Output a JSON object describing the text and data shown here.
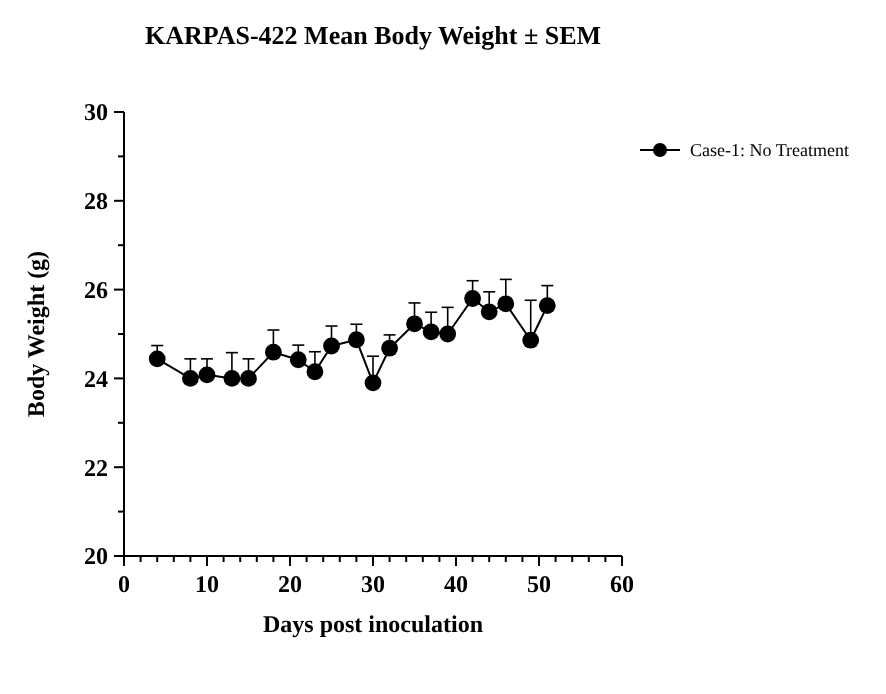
{
  "chart_data": {
    "type": "line",
    "title": "KARPAS-422 Mean Body Weight ± SEM",
    "xlabel": "Days post inoculation",
    "ylabel": "Body Weight (g)",
    "x": [
      4,
      8,
      10,
      13,
      15,
      18,
      21,
      23,
      25,
      28,
      30,
      32,
      35,
      37,
      39,
      42,
      44,
      46,
      49,
      51
    ],
    "series": [
      {
        "name": "Case-1: No Treatment",
        "color": "#000000",
        "values": [
          24.44,
          24.0,
          24.08,
          24.0,
          24.0,
          24.59,
          24.42,
          24.15,
          24.73,
          24.87,
          23.9,
          24.68,
          25.23,
          25.05,
          25.0,
          25.8,
          25.5,
          25.68,
          24.86,
          25.64
        ],
        "errors": [
          0.3,
          0.44,
          0.36,
          0.58,
          0.44,
          0.5,
          0.33,
          0.45,
          0.45,
          0.35,
          0.6,
          0.3,
          0.47,
          0.44,
          0.6,
          0.4,
          0.45,
          0.55,
          0.9,
          0.45
        ]
      }
    ],
    "xlim": [
      0,
      60
    ],
    "ylim": [
      20,
      30
    ],
    "xticks": [
      0,
      {
        "value": 2,
        "label": null
      },
      {
        "value": 4,
        "label": null
      },
      {
        "value": 6,
        "label": null
      },
      {
        "value": 8,
        "label": null
      },
      10,
      {
        "value": 12,
        "label": null
      },
      {
        "value": 14,
        "label": null
      },
      {
        "value": 16,
        "label": null
      },
      {
        "value": 18,
        "label": null
      },
      20,
      {
        "value": 22,
        "label": null
      },
      {
        "value": 24,
        "label": null
      },
      {
        "value": 26,
        "label": null
      },
      {
        "value": 28,
        "label": null
      },
      30,
      {
        "value": 32,
        "label": null
      },
      {
        "value": 34,
        "label": null
      },
      {
        "value": 36,
        "label": null
      },
      {
        "value": 38,
        "label": null
      },
      40,
      {
        "value": 42,
        "label": null
      },
      {
        "value": 44,
        "label": null
      },
      {
        "value": 46,
        "label": null
      },
      {
        "value": 48,
        "label": null
      },
      50,
      {
        "value": 52,
        "label": null
      },
      {
        "value": 54,
        "label": null
      },
      {
        "value": 56,
        "label": null
      },
      {
        "value": 58,
        "label": null
      },
      60
    ],
    "yticks": [
      20,
      {
        "value": 21,
        "label": null
      },
      22,
      {
        "value": 23,
        "label": null
      },
      24,
      {
        "value": 25,
        "label": null
      },
      26,
      {
        "value": 27,
        "label": null
      },
      28,
      {
        "value": 29,
        "label": null
      },
      30
    ],
    "grid": false,
    "legend": "top right",
    "marker": "circle",
    "line_style": "solid"
  }
}
